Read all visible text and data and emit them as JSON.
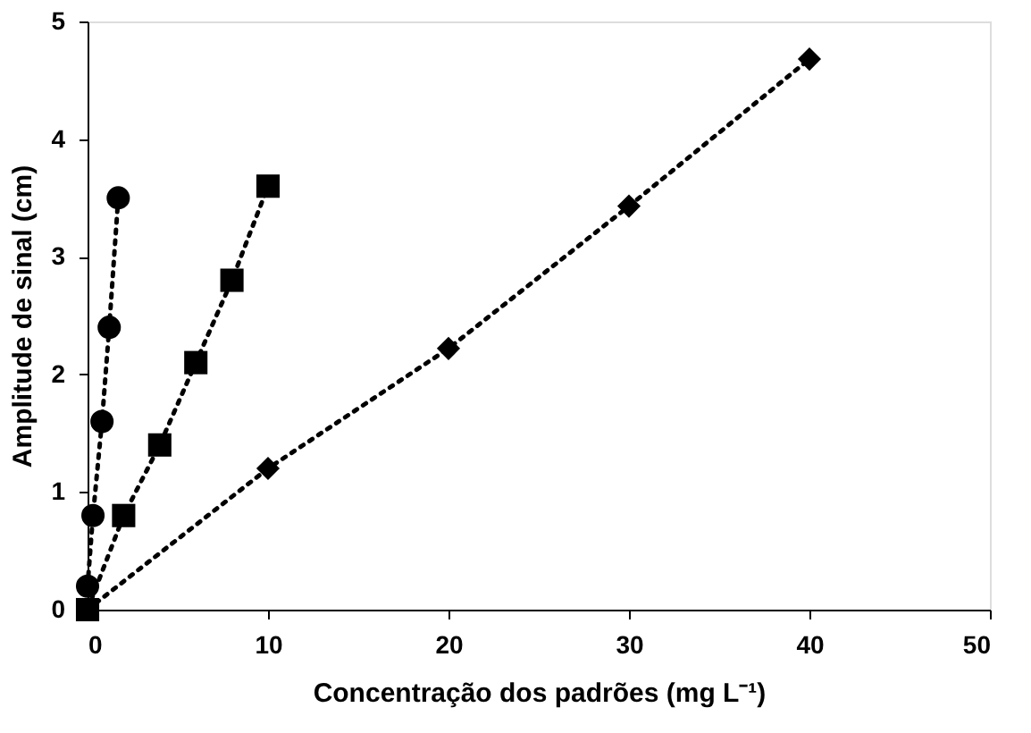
{
  "chart_data": {
    "type": "line",
    "xlabel": "Concentração dos padrões  (mg L⁻¹)",
    "ylabel": "Amplitude de sinal (cm)",
    "xlim": [
      0,
      50
    ],
    "xticks": [
      0,
      10,
      20,
      30,
      40,
      50
    ],
    "ylim": [
      0,
      5
    ],
    "yticks": [
      0,
      1,
      2,
      3,
      4,
      5
    ],
    "grid": false,
    "legend": false,
    "line_style": "dotted",
    "series": [
      {
        "color": "#000000",
        "marker": "circle",
        "x": [
          0,
          0.3,
          0.8,
          1.2,
          1.7
        ],
        "values": [
          0.2,
          0.8,
          1.6,
          2.4,
          3.5
        ]
      },
      {
        "color": "#000000",
        "marker": "square",
        "x": [
          0,
          2,
          4,
          6,
          8,
          10
        ],
        "values": [
          0,
          0.8,
          1.4,
          2.1,
          2.8,
          3.6
        ]
      },
      {
        "color": "#000000",
        "marker": "diamond",
        "x": [
          0,
          10,
          20,
          30,
          40
        ],
        "values": [
          0,
          1.2,
          2.22,
          3.43,
          4.68
        ]
      }
    ]
  }
}
